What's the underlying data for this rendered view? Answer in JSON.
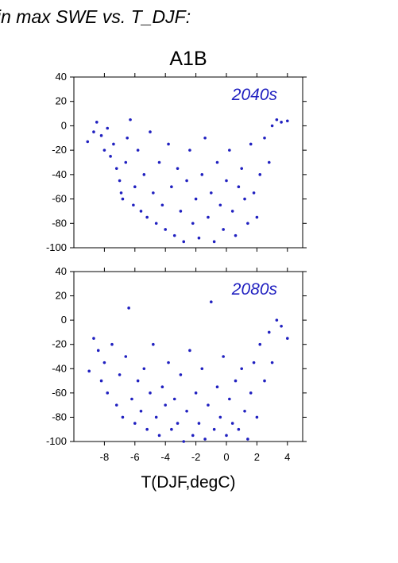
{
  "page": {
    "title": "in max SWE vs. T_DJF:",
    "scenario": "A1B",
    "xlabel": "T(DJF,degC)"
  },
  "colors": {
    "points": "#2020c0",
    "axes": "#000000"
  },
  "chart_data": [
    {
      "type": "scatter",
      "panel_label": "2040s",
      "xlim": [
        -10,
        5
      ],
      "ylim": [
        -100,
        40
      ],
      "x_ticks": [
        -8,
        -6,
        -4,
        -2,
        0,
        2,
        4
      ],
      "y_ticks": [
        -100,
        -80,
        -60,
        -40,
        -20,
        0,
        20,
        40
      ],
      "y_tick_labels": [
        "-100",
        "-80",
        "-60",
        "-40",
        "-20",
        "0",
        "20",
        "40"
      ],
      "x_tick_labels_shown": false,
      "point_color": "#2020c0",
      "series": [
        {
          "points": [
            [
              -9.1,
              -13
            ],
            [
              -8.7,
              -5
            ],
            [
              -8.5,
              3
            ],
            [
              -8.2,
              -8
            ],
            [
              -8.0,
              -20
            ],
            [
              -7.8,
              -2
            ],
            [
              -7.6,
              -25
            ],
            [
              -7.4,
              -15
            ],
            [
              -7.2,
              -35
            ],
            [
              -7.0,
              -45
            ],
            [
              -6.9,
              -55
            ],
            [
              -6.8,
              -60
            ],
            [
              -6.6,
              -30
            ],
            [
              -6.5,
              -10
            ],
            [
              -6.3,
              5
            ],
            [
              -6.1,
              -65
            ],
            [
              -6.0,
              -50
            ],
            [
              -5.8,
              -20
            ],
            [
              -5.6,
              -70
            ],
            [
              -5.4,
              -40
            ],
            [
              -5.2,
              -75
            ],
            [
              -5.0,
              -5
            ],
            [
              -4.8,
              -55
            ],
            [
              -4.6,
              -80
            ],
            [
              -4.4,
              -30
            ],
            [
              -4.2,
              -65
            ],
            [
              -4.0,
              -85
            ],
            [
              -3.8,
              -15
            ],
            [
              -3.6,
              -50
            ],
            [
              -3.4,
              -90
            ],
            [
              -3.2,
              -35
            ],
            [
              -3.0,
              -70
            ],
            [
              -2.8,
              -95
            ],
            [
              -2.6,
              -45
            ],
            [
              -2.4,
              -20
            ],
            [
              -2.2,
              -80
            ],
            [
              -2.0,
              -60
            ],
            [
              -1.8,
              -92
            ],
            [
              -1.6,
              -40
            ],
            [
              -1.4,
              -10
            ],
            [
              -1.2,
              -75
            ],
            [
              -1.0,
              -55
            ],
            [
              -0.8,
              -95
            ],
            [
              -0.6,
              -30
            ],
            [
              -0.4,
              -65
            ],
            [
              -0.2,
              -85
            ],
            [
              0.0,
              -45
            ],
            [
              0.2,
              -20
            ],
            [
              0.4,
              -70
            ],
            [
              0.6,
              -90
            ],
            [
              0.8,
              -50
            ],
            [
              1.0,
              -35
            ],
            [
              1.2,
              -60
            ],
            [
              1.4,
              -80
            ],
            [
              1.6,
              -15
            ],
            [
              1.8,
              -55
            ],
            [
              2.0,
              -75
            ],
            [
              2.2,
              -40
            ],
            [
              2.5,
              -10
            ],
            [
              2.8,
              -30
            ],
            [
              3.0,
              0
            ],
            [
              3.3,
              5
            ],
            [
              3.6,
              3
            ],
            [
              4.0,
              4
            ]
          ]
        }
      ]
    },
    {
      "type": "scatter",
      "panel_label": "2080s",
      "xlim": [
        -10,
        5
      ],
      "ylim": [
        -100,
        40
      ],
      "x_ticks": [
        -8,
        -6,
        -4,
        -2,
        0,
        2,
        4
      ],
      "y_ticks": [
        -100,
        -80,
        -60,
        -40,
        -20,
        0,
        20,
        40
      ],
      "y_tick_labels": [
        "-100",
        "-80",
        "-60",
        "-40",
        "-20",
        "0",
        "20",
        "40"
      ],
      "x_tick_labels": [
        "-8",
        "-6",
        "-4",
        "-2",
        "0",
        "2",
        "4"
      ],
      "point_color": "#2020c0",
      "series": [
        {
          "points": [
            [
              -9.0,
              -42
            ],
            [
              -8.7,
              -15
            ],
            [
              -8.4,
              -25
            ],
            [
              -8.2,
              -50
            ],
            [
              -8.0,
              -35
            ],
            [
              -7.8,
              -60
            ],
            [
              -7.5,
              -20
            ],
            [
              -7.2,
              -70
            ],
            [
              -7.0,
              -45
            ],
            [
              -6.8,
              -80
            ],
            [
              -6.6,
              -30
            ],
            [
              -6.4,
              10
            ],
            [
              -6.2,
              -65
            ],
            [
              -6.0,
              -85
            ],
            [
              -5.8,
              -50
            ],
            [
              -5.6,
              -75
            ],
            [
              -5.4,
              -40
            ],
            [
              -5.2,
              -90
            ],
            [
              -5.0,
              -60
            ],
            [
              -4.8,
              -20
            ],
            [
              -4.6,
              -80
            ],
            [
              -4.4,
              -95
            ],
            [
              -4.2,
              -55
            ],
            [
              -4.0,
              -70
            ],
            [
              -3.8,
              -35
            ],
            [
              -3.6,
              -90
            ],
            [
              -3.4,
              -65
            ],
            [
              -3.2,
              -85
            ],
            [
              -3.0,
              -45
            ],
            [
              -2.8,
              -100
            ],
            [
              -2.6,
              -75
            ],
            [
              -2.4,
              -25
            ],
            [
              -2.2,
              -95
            ],
            [
              -2.0,
              -60
            ],
            [
              -1.8,
              -85
            ],
            [
              -1.6,
              -40
            ],
            [
              -1.4,
              -98
            ],
            [
              -1.2,
              -70
            ],
            [
              -1.0,
              15
            ],
            [
              -0.8,
              -90
            ],
            [
              -0.6,
              -55
            ],
            [
              -0.4,
              -80
            ],
            [
              -0.2,
              -30
            ],
            [
              0.0,
              -95
            ],
            [
              0.2,
              -65
            ],
            [
              0.4,
              -85
            ],
            [
              0.6,
              -50
            ],
            [
              0.8,
              -90
            ],
            [
              1.0,
              -40
            ],
            [
              1.2,
              -75
            ],
            [
              1.4,
              -98
            ],
            [
              1.6,
              -60
            ],
            [
              1.8,
              -35
            ],
            [
              2.0,
              -80
            ],
            [
              2.2,
              -20
            ],
            [
              2.5,
              -50
            ],
            [
              2.8,
              -10
            ],
            [
              3.0,
              -35
            ],
            [
              3.3,
              0
            ],
            [
              3.6,
              -5
            ],
            [
              4.0,
              -15
            ]
          ]
        }
      ]
    }
  ]
}
